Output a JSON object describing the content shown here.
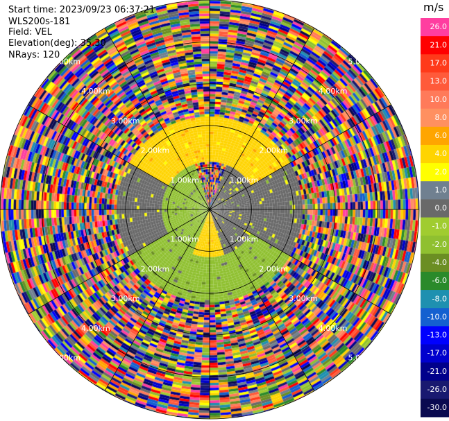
{
  "header": {
    "start_time": "Start time: 2023/09/23 06:37:21",
    "station": "WLS200s-181",
    "field": "Field: VEL",
    "elevation": "Elevation(deg): 35.30",
    "nrays": "NRays: 120"
  },
  "chart_data": {
    "type": "ppi",
    "field": "VEL",
    "units": "m/s",
    "max_range_km": 5.0,
    "n_rays": 120,
    "range_rings_km": [
      1.0,
      2.0,
      3.0,
      4.0,
      5.0
    ],
    "ring_labels": [
      "1.00km",
      "2.00km",
      "3.00km",
      "4.00km",
      "5.00km"
    ],
    "spoke_interval_deg": 30,
    "colorbar": {
      "label": "m/s",
      "ticks": [
        "26.0",
        "21.0",
        "17.0",
        "13.0",
        "10.0",
        "8.0",
        "6.0",
        "4.0",
        "2.0",
        "1.0",
        "0.0",
        "-1.0",
        "-2.0",
        "-4.0",
        "-6.0",
        "-8.0",
        "-10.0",
        "-13.0",
        "-17.0",
        "-21.0",
        "-26.0",
        "-30.0"
      ],
      "colors": [
        "#ff3ea0",
        "#ff0000",
        "#ff3a1a",
        "#ff5a3a",
        "#ff7a5a",
        "#ff9060",
        "#ffa500",
        "#ffd400",
        "#ffff00",
        "#708090",
        "#696969",
        "#a0cc30",
        "#8fc030",
        "#6b8e23",
        "#2a8a2a",
        "#1e90b0",
        "#1460d0",
        "#0000ff",
        "#0000cd",
        "#00008b",
        "#191970",
        "#0a0a50"
      ]
    },
    "near_field_zones": [
      {
        "r_km_from": 0.0,
        "r_km_to": 1.1,
        "from_deg": 20,
        "to_deg": 160,
        "value": 0.0
      },
      {
        "r_km_from": 0.0,
        "r_km_to": 1.1,
        "from_deg": 160,
        "to_deg": 200,
        "value": 4.0
      },
      {
        "r_km_from": 0.0,
        "r_km_to": 1.1,
        "from_deg": 200,
        "to_deg": 340,
        "value": -2.0
      },
      {
        "r_km_from": 1.1,
        "r_km_to": 2.2,
        "from_deg": 300,
        "to_deg": 60,
        "value": 4.0
      },
      {
        "r_km_from": 1.1,
        "r_km_to": 2.2,
        "from_deg": 60,
        "to_deg": 120,
        "value": 0.0
      },
      {
        "r_km_from": 1.1,
        "r_km_to": 2.2,
        "from_deg": 120,
        "to_deg": 240,
        "value": -2.0
      },
      {
        "r_km_from": 1.1,
        "r_km_to": 2.2,
        "from_deg": 240,
        "to_deg": 300,
        "value": 0.0
      },
      {
        "r_km_from": 2.2,
        "r_km_to": 3.3,
        "from_deg": 0,
        "to_deg": 360,
        "value": "noise"
      },
      {
        "r_km_from": 3.3,
        "r_km_to": 5.0,
        "from_deg": 0,
        "to_deg": 360,
        "value": "noise"
      }
    ]
  }
}
